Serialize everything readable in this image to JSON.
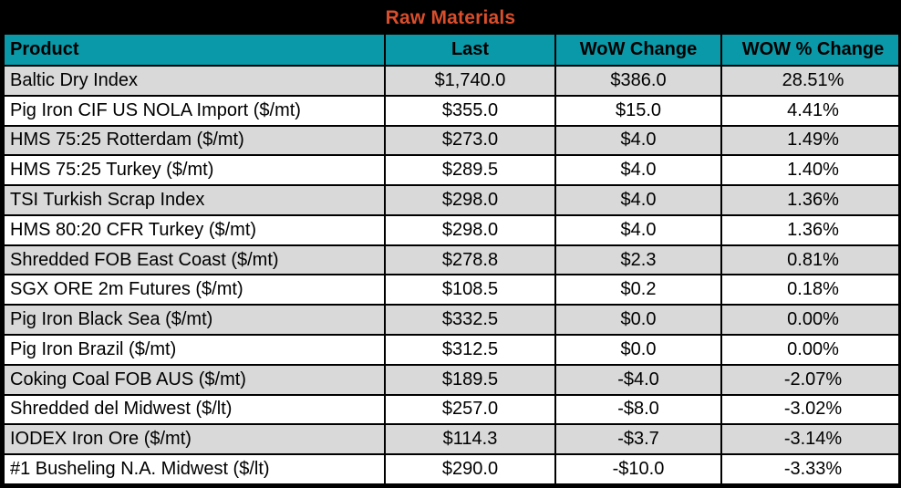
{
  "colors": {
    "title_bg": "#000000",
    "title_text": "#D94E2B",
    "header_bg": "#0999A8",
    "header_text": "#000000",
    "row_odd_bg": "#D9D9D9",
    "row_even_bg": "#FFFFFF",
    "grid": "#000000",
    "text": "#000000"
  },
  "chart_data": {
    "type": "table",
    "title": "Raw Materials",
    "columns": [
      "Product",
      "Last",
      "WoW Change",
      "WOW % Change"
    ],
    "rows": [
      [
        "Baltic Dry Index",
        "$1,740.0",
        "$386.0",
        "28.51%"
      ],
      [
        "Pig Iron CIF US NOLA Import ($/mt)",
        "$355.0",
        "$15.0",
        "4.41%"
      ],
      [
        "HMS 75:25 Rotterdam ($/mt)",
        "$273.0",
        "$4.0",
        "1.49%"
      ],
      [
        "HMS 75:25 Turkey ($/mt)",
        "$289.5",
        "$4.0",
        "1.40%"
      ],
      [
        "TSI Turkish Scrap Index",
        "$298.0",
        "$4.0",
        "1.36%"
      ],
      [
        "HMS 80:20 CFR Turkey ($/mt)",
        "$298.0",
        "$4.0",
        "1.36%"
      ],
      [
        "Shredded FOB East Coast ($/mt)",
        "$278.8",
        "$2.3",
        "0.81%"
      ],
      [
        "SGX ORE 2m Futures ($/mt)",
        "$108.5",
        "$0.2",
        "0.18%"
      ],
      [
        "Pig Iron Black Sea ($/mt)",
        "$332.5",
        "$0.0",
        "0.00%"
      ],
      [
        "Pig Iron Brazil ($/mt)",
        "$312.5",
        "$0.0",
        "0.00%"
      ],
      [
        "Coking Coal FOB AUS ($/mt)",
        "$189.5",
        "-$4.0",
        "-2.07%"
      ],
      [
        "Shredded del  Midwest ($/lt)",
        "$257.0",
        "-$8.0",
        "-3.02%"
      ],
      [
        "IODEX  Iron Ore ($/mt)",
        "$114.3",
        "-$3.7",
        "-3.14%"
      ],
      [
        "#1 Busheling N.A. Midwest ($/lt)",
        "$290.0",
        "-$10.0",
        "-3.33%"
      ]
    ]
  }
}
